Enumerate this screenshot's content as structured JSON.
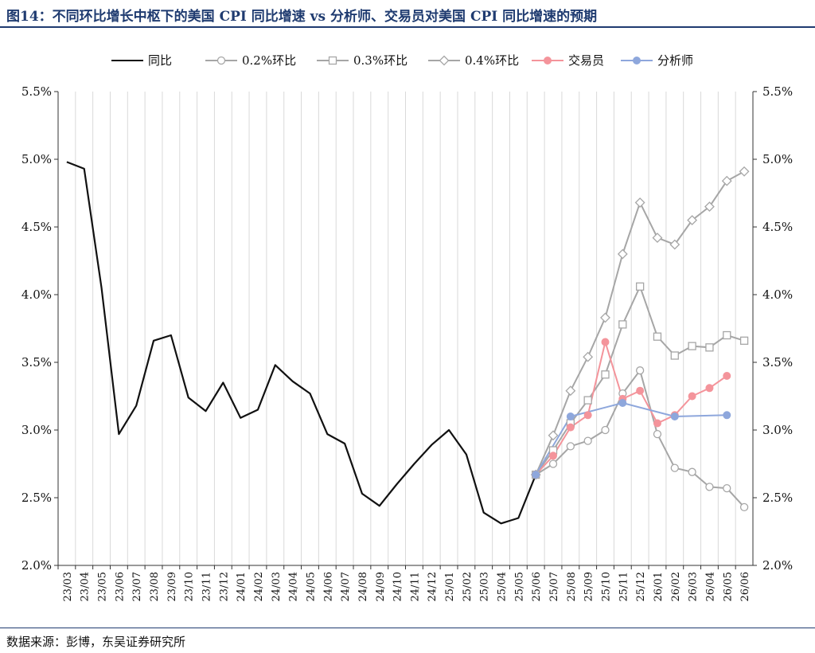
{
  "header": {
    "figure_title": "图14：不同环比增长中枢下的美国 CPI 同比增速 vs 分析师、交易员对美国 CPI 同比增速的预期"
  },
  "footer": {
    "source": "数据来源：彭博，东吴证券研究所"
  },
  "chart_data": {
    "type": "line",
    "categories": [
      "23/03",
      "23/04",
      "23/05",
      "23/06",
      "23/07",
      "23/08",
      "23/09",
      "23/10",
      "23/11",
      "23/12",
      "24/01",
      "24/02",
      "24/03",
      "24/04",
      "24/05",
      "24/06",
      "24/07",
      "24/08",
      "24/09",
      "24/10",
      "24/11",
      "24/12",
      "25/01",
      "25/02",
      "25/03",
      "25/04",
      "25/05",
      "25/06",
      "25/07",
      "25/08",
      "25/09",
      "25/10",
      "25/11",
      "25/12",
      "26/01",
      "26/02",
      "26/03",
      "26/04",
      "26/05",
      "26/06"
    ],
    "ylim": [
      2.0,
      5.5
    ],
    "yticks": [
      "2.0%",
      "2.5%",
      "3.0%",
      "3.5%",
      "4.0%",
      "4.5%",
      "5.0%",
      "5.5%"
    ],
    "ytick_values": [
      2.0,
      2.5,
      3.0,
      3.5,
      4.0,
      4.5,
      5.0,
      5.5
    ],
    "grid": "vertical",
    "legend_position": "top",
    "series": [
      {
        "name": "同比",
        "color": "#111111",
        "marker": "none",
        "values": [
          4.98,
          4.93,
          4.05,
          2.97,
          3.18,
          3.66,
          3.7,
          3.24,
          3.14,
          3.35,
          3.09,
          3.15,
          3.48,
          3.36,
          3.27,
          2.97,
          2.9,
          2.53,
          2.44,
          2.6,
          2.75,
          2.89,
          3.0,
          2.82,
          2.39,
          2.31,
          2.35,
          2.67,
          null,
          null,
          null,
          null,
          null,
          null,
          null,
          null,
          null,
          null,
          null,
          null
        ]
      },
      {
        "name": "0.2%环比",
        "color": "#a6a6a6",
        "marker": "circle-open",
        "values": [
          null,
          null,
          null,
          null,
          null,
          null,
          null,
          null,
          null,
          null,
          null,
          null,
          null,
          null,
          null,
          null,
          null,
          null,
          null,
          null,
          null,
          null,
          null,
          null,
          null,
          null,
          null,
          2.67,
          2.75,
          2.88,
          2.92,
          3.0,
          3.27,
          3.44,
          2.97,
          2.72,
          2.69,
          2.58,
          2.57,
          2.43
        ]
      },
      {
        "name": "0.3%环比",
        "color": "#a6a6a6",
        "marker": "square-open",
        "values": [
          null,
          null,
          null,
          null,
          null,
          null,
          null,
          null,
          null,
          null,
          null,
          null,
          null,
          null,
          null,
          null,
          null,
          null,
          null,
          null,
          null,
          null,
          null,
          null,
          null,
          null,
          null,
          2.67,
          2.85,
          3.05,
          3.22,
          3.41,
          3.78,
          4.06,
          3.69,
          3.55,
          3.62,
          3.61,
          3.7,
          3.66
        ]
      },
      {
        "name": "0.4%环比",
        "color": "#a6a6a6",
        "marker": "diamond-open",
        "values": [
          null,
          null,
          null,
          null,
          null,
          null,
          null,
          null,
          null,
          null,
          null,
          null,
          null,
          null,
          null,
          null,
          null,
          null,
          null,
          null,
          null,
          null,
          null,
          null,
          null,
          null,
          null,
          2.67,
          2.96,
          3.29,
          3.54,
          3.83,
          4.3,
          4.68,
          4.42,
          4.37,
          4.55,
          4.65,
          4.84,
          4.91
        ]
      },
      {
        "name": "交易员",
        "color": "#f4949b",
        "marker": "circle-filled",
        "values": [
          null,
          null,
          null,
          null,
          null,
          null,
          null,
          null,
          null,
          null,
          null,
          null,
          null,
          null,
          null,
          null,
          null,
          null,
          null,
          null,
          null,
          null,
          null,
          null,
          null,
          null,
          null,
          2.67,
          2.81,
          3.02,
          3.11,
          3.65,
          3.23,
          3.29,
          3.05,
          3.11,
          3.25,
          3.31,
          3.4,
          null
        ]
      },
      {
        "name": "分析师",
        "color": "#8ea7dc",
        "marker": "circle-filled",
        "values": [
          null,
          null,
          null,
          null,
          null,
          null,
          null,
          null,
          null,
          null,
          null,
          null,
          null,
          null,
          null,
          null,
          null,
          null,
          null,
          null,
          null,
          null,
          null,
          null,
          null,
          null,
          null,
          2.67,
          null,
          3.1,
          null,
          null,
          3.2,
          null,
          null,
          3.1,
          null,
          null,
          3.11,
          null
        ]
      }
    ]
  }
}
